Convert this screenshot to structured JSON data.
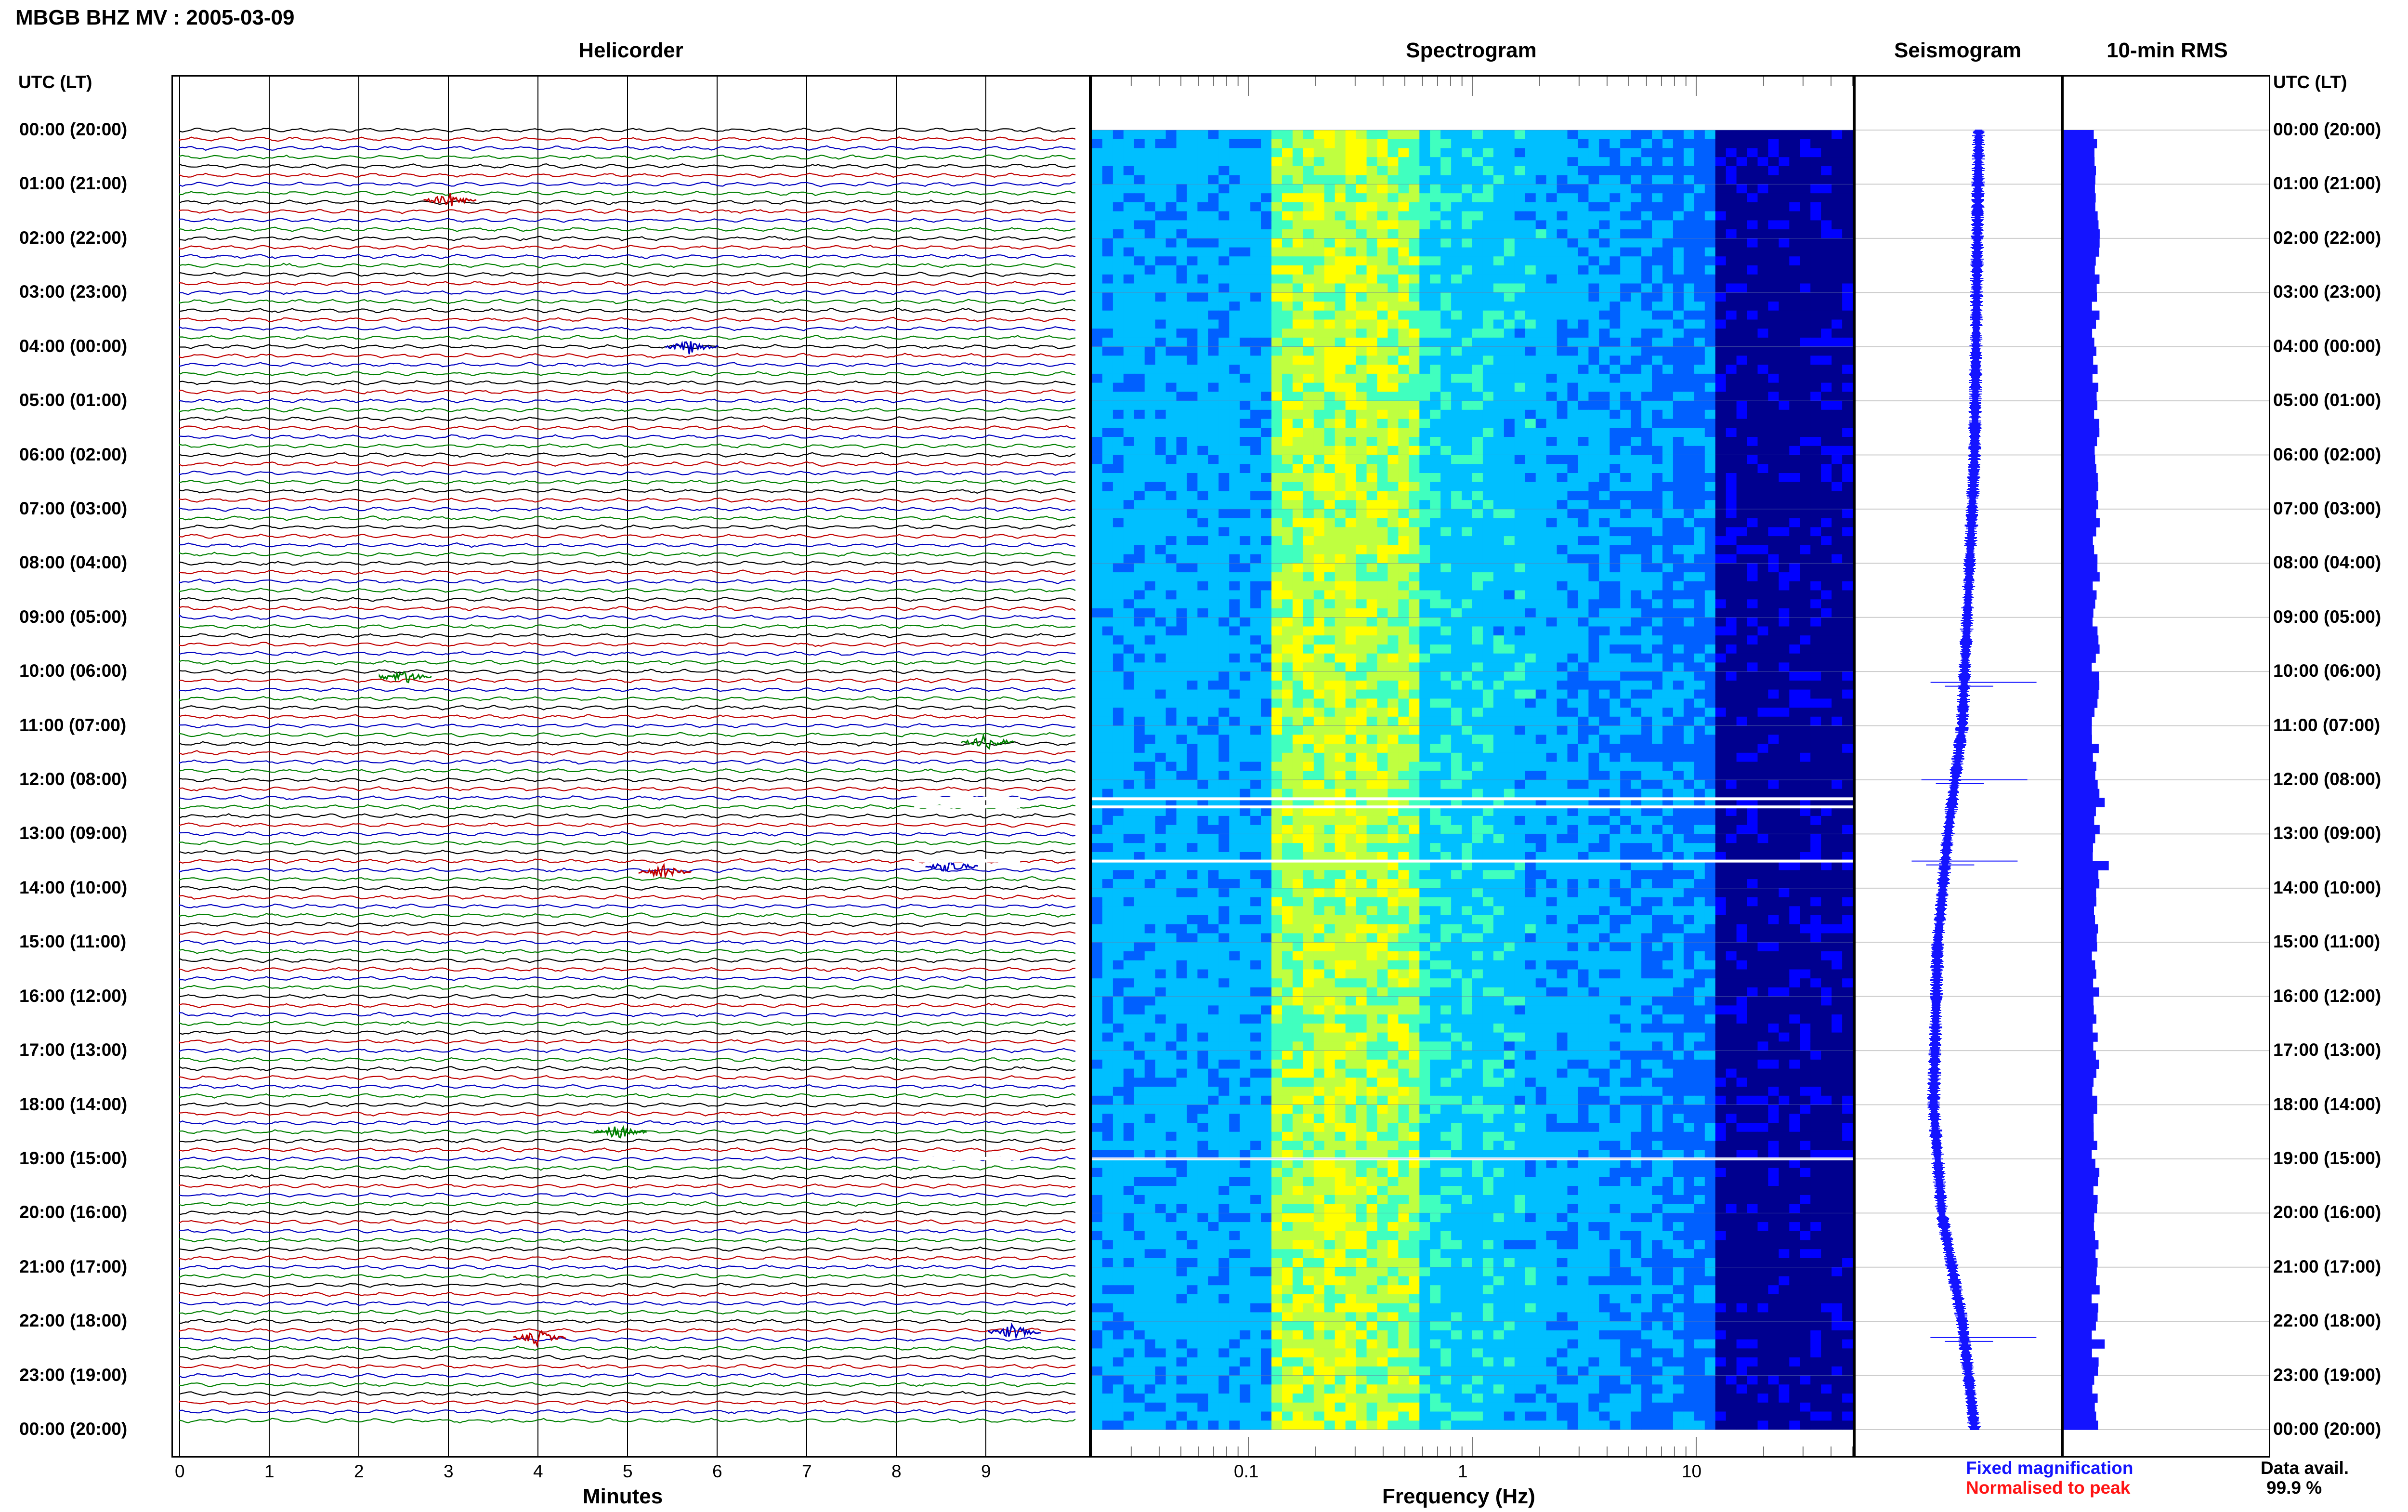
{
  "title": "MBGB BHZ MV : 2005-03-09",
  "panels": {
    "helicorder": "Helicorder",
    "spectrogram": "Spectrogram",
    "seismogram": "Seismogram",
    "rms": "10-min RMS"
  },
  "time_header": "UTC (LT)",
  "time_labels": [
    "00:00 (20:00)",
    "01:00 (21:00)",
    "02:00 (22:00)",
    "03:00 (23:00)",
    "04:00 (00:00)",
    "05:00 (01:00)",
    "06:00 (02:00)",
    "07:00 (03:00)",
    "08:00 (04:00)",
    "09:00 (05:00)",
    "10:00 (06:00)",
    "11:00 (07:00)",
    "12:00 (08:00)",
    "13:00 (09:00)",
    "14:00 (10:00)",
    "15:00 (11:00)",
    "16:00 (12:00)",
    "17:00 (13:00)",
    "18:00 (14:00)",
    "19:00 (15:00)",
    "20:00 (16:00)",
    "21:00 (17:00)",
    "22:00 (18:00)",
    "23:00 (19:00)",
    "00:00 (20:00)"
  ],
  "legend": {
    "fixed": "Fixed magnification",
    "normalised": "Normalised to peak",
    "colors": {
      "fixed": "#1414ff",
      "normalised": "#ff1414"
    }
  },
  "data_avail": {
    "label": "Data avail.",
    "value": "99.9 %"
  },
  "chart_data": [
    {
      "type": "line",
      "name": "Helicorder",
      "xlabel": "Minutes",
      "xlim": [
        0,
        10
      ],
      "x_ticks": [
        0,
        1,
        2,
        3,
        4,
        5,
        6,
        7,
        8,
        9
      ],
      "ylim_hours": [
        0,
        24
      ],
      "rows_per_hour": 6,
      "trace_colors": [
        "#000000",
        "#c00000",
        "#0000c0",
        "#008000"
      ],
      "events": [
        {
          "hour": 13.7,
          "minute": 5.4
        },
        {
          "hour": 13.6,
          "minute": 8.6
        },
        {
          "hour": 18.5,
          "minute": 4.9
        },
        {
          "hour": 22.3,
          "minute": 4.0
        },
        {
          "hour": 22.2,
          "minute": 9.3
        },
        {
          "hour": 10.1,
          "minute": 2.5
        },
        {
          "hour": 1.3,
          "minute": 3.0
        },
        {
          "hour": 4.0,
          "minute": 5.7
        },
        {
          "hour": 11.3,
          "minute": 9.0
        }
      ],
      "gaps_hours": [
        12.35,
        12.5,
        13.5,
        19.0
      ]
    },
    {
      "type": "heatmap",
      "name": "Spectrogram",
      "xlabel": "Frequency (Hz)",
      "x_scale": "log",
      "xlim": [
        0.02,
        50
      ],
      "x_ticks": [
        0.1,
        1,
        10
      ],
      "x_tick_labels": [
        "0.1",
        "1",
        "10"
      ],
      "ylim_hours": [
        0,
        24
      ],
      "peak_band_hz": [
        0.15,
        0.5
      ],
      "colormap": [
        "#00008f",
        "#0000ff",
        "#0060ff",
        "#00bfff",
        "#40ffbf",
        "#bfff40",
        "#ffff00"
      ]
    },
    {
      "type": "line",
      "name": "Seismogram",
      "ylim_hours": [
        0,
        24
      ],
      "drift": [
        [
          0,
          0.6
        ],
        [
          6,
          0.58
        ],
        [
          11,
          0.52
        ],
        [
          13,
          0.45
        ],
        [
          15,
          0.4
        ],
        [
          18,
          0.38
        ],
        [
          20,
          0.42
        ],
        [
          22,
          0.52
        ],
        [
          24,
          0.58
        ]
      ],
      "spikes_hours": [
        13.5,
        22.3,
        10.2,
        12.0
      ]
    },
    {
      "type": "bar",
      "name": "10-min RMS",
      "ylim_hours": [
        0,
        24
      ],
      "bins_per_hour": 6,
      "typical_fraction": 0.16,
      "peaks": [
        {
          "hour": 13.5,
          "fraction": 0.22
        },
        {
          "hour": 22.3,
          "fraction": 0.2
        },
        {
          "hour": 12.3,
          "fraction": 0.2
        }
      ],
      "color": "#1414ff"
    }
  ]
}
